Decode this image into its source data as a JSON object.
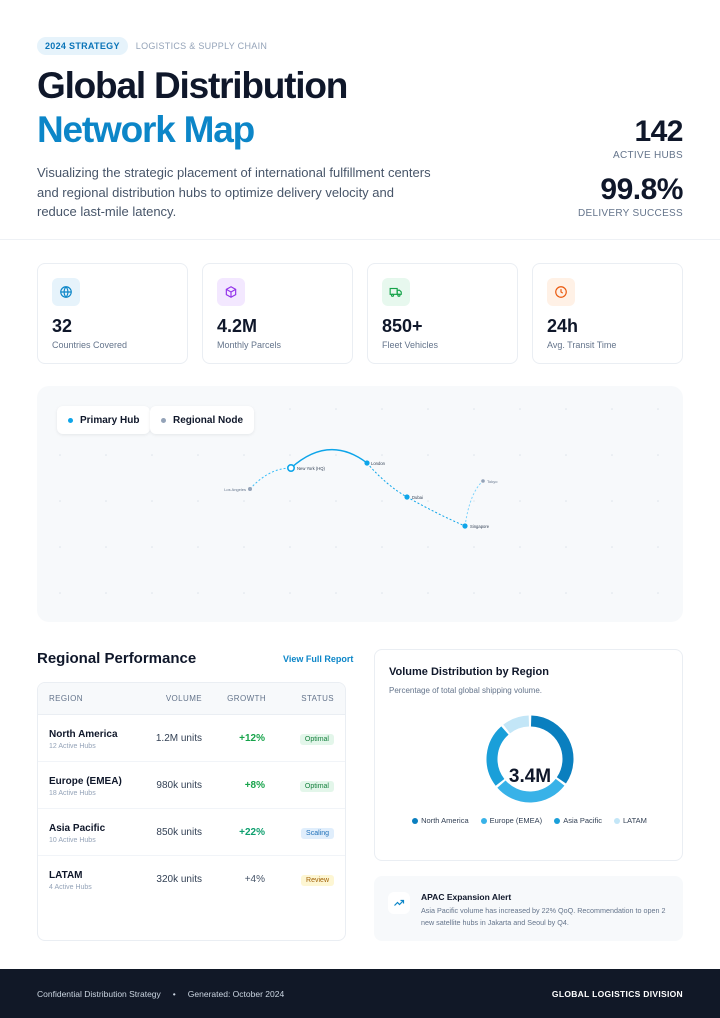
{
  "header": {
    "tag_strategy": "2024 STRATEGY",
    "tag_category": "LOGISTICS & SUPPLY CHAIN",
    "title_line1": "Global Distribution",
    "title_line2": "Network Map",
    "subtitle": "Visualizing the strategic placement of international fulfillment centers and regional distribution hubs to optimize delivery velocity and reduce last-mile latency.",
    "kpis": [
      {
        "value": "142",
        "label": "ACTIVE HUBS"
      },
      {
        "value": "99.8%",
        "label": "DELIVERY SUCCESS"
      }
    ]
  },
  "stats": [
    {
      "icon": "globe-icon",
      "value": "32",
      "label": "Countries Covered",
      "color": "#0c86c8",
      "bg": "#e6f3fb"
    },
    {
      "icon": "package-icon",
      "value": "4.2M",
      "label": "Monthly Parcels",
      "color": "#9333ea",
      "bg": "#f3e8ff"
    },
    {
      "icon": "truck-icon",
      "value": "850+",
      "label": "Fleet Vehicles",
      "color": "#16a34a",
      "bg": "#e7f8ee"
    },
    {
      "icon": "clock-icon",
      "value": "24h",
      "label": "Avg. Transit Time",
      "color": "#ea580c",
      "bg": "#fff1e6"
    }
  ],
  "map": {
    "legend": [
      {
        "label": "Primary Hub",
        "color": "#0ea5e9"
      },
      {
        "label": "Regional Node",
        "color": "#94a3b8"
      }
    ],
    "nodes": [
      {
        "label": "Los Angeles"
      },
      {
        "label": "New York (HQ)"
      },
      {
        "label": "London"
      },
      {
        "label": "Dubai"
      },
      {
        "label": "Singapore"
      },
      {
        "label": "Tokyo"
      }
    ]
  },
  "performance": {
    "title": "Regional Performance",
    "link": "View Full Report",
    "columns": [
      "REGION",
      "VOLUME",
      "GROWTH",
      "STATUS"
    ],
    "rows": [
      {
        "name": "North America",
        "sub": "12 Active Hubs",
        "volume": "1.2M units",
        "growth": "+12%",
        "status": "Optimal"
      },
      {
        "name": "Europe (EMEA)",
        "sub": "18 Active Hubs",
        "volume": "980k units",
        "growth": "+8%",
        "status": "Optimal"
      },
      {
        "name": "Asia Pacific",
        "sub": "10 Active Hubs",
        "volume": "850k units",
        "growth": "+22%",
        "status": "Scaling"
      },
      {
        "name": "LATAM",
        "sub": "4 Active Hubs",
        "volume": "320k units",
        "growth": "+4%",
        "status": "Review"
      }
    ]
  },
  "volume": {
    "title": "Volume Distribution by Region",
    "subtitle": "Percentage of total global shipping volume.",
    "center": "3.4M",
    "chart_data": {
      "type": "pie",
      "categories": [
        "North America",
        "Europe (EMEA)",
        "Asia Pacific",
        "LATAM"
      ],
      "values": [
        35,
        29,
        25,
        11
      ],
      "colors": [
        "#0a7fbf",
        "#38b2e8",
        "#1a9fd9",
        "#c3e6f7"
      ]
    }
  },
  "alert": {
    "title": "APAC Expansion Alert",
    "text": "Asia Pacific volume has increased by 22% QoQ. Recommendation to open 2 new satellite hubs in Jakarta and Seoul by Q4."
  },
  "footer": {
    "left": "Confidential Distribution Strategy",
    "bullet": "•",
    "generated": "Generated: October 2024",
    "right": "GLOBAL LOGISTICS DIVISION"
  }
}
